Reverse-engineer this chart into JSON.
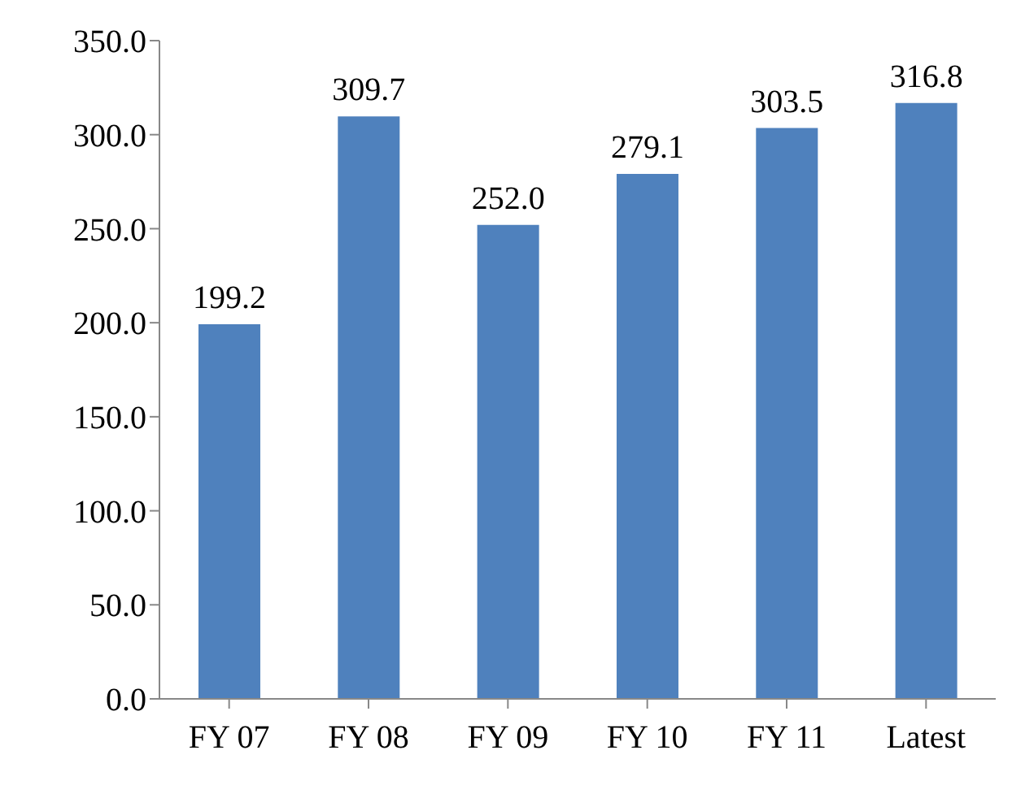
{
  "chart_data": {
    "type": "bar",
    "categories": [
      "FY 07",
      "FY 08",
      "FY 09",
      "FY 10",
      "FY 11",
      "Latest"
    ],
    "values": [
      199.2,
      309.7,
      252.0,
      279.1,
      303.5,
      316.8
    ],
    "value_labels": [
      "199.2",
      "309.7",
      "252.0",
      "279.1",
      "303.5",
      "316.8"
    ],
    "color": "#4f81bd",
    "ylim": [
      0,
      350
    ],
    "yticks": [
      {
        "value": 0,
        "label": "0.0"
      },
      {
        "value": 50,
        "label": "50.0"
      },
      {
        "value": 100,
        "label": "100.0"
      },
      {
        "value": 150,
        "label": "150.0"
      },
      {
        "value": 200,
        "label": "200.0"
      },
      {
        "value": 250,
        "label": "250.0"
      },
      {
        "value": 300,
        "label": "300.0"
      },
      {
        "value": 350,
        "label": "350.0"
      }
    ],
    "grid": false
  }
}
